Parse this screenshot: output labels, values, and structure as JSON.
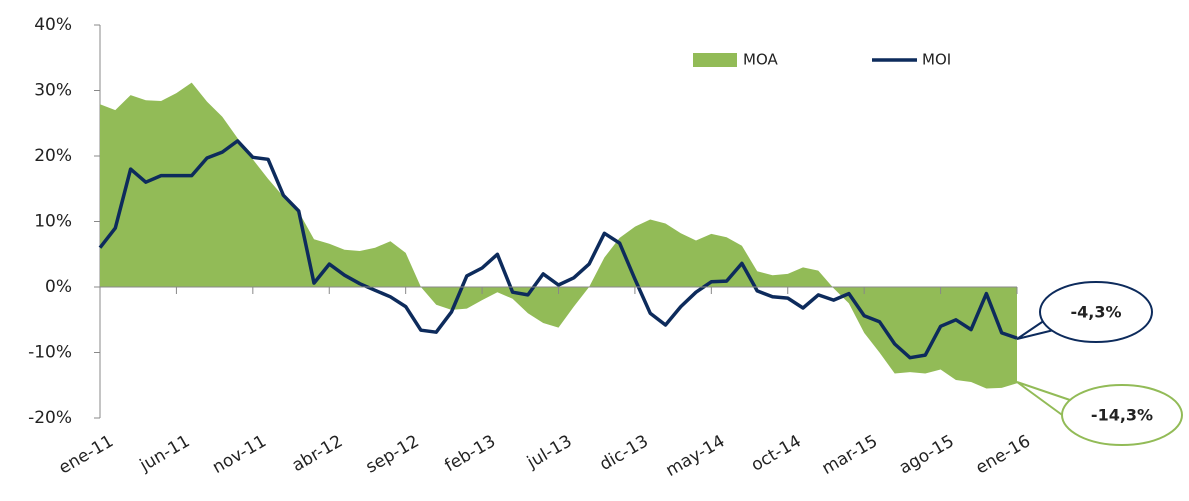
{
  "chart_data": {
    "type": "area-line",
    "categories": [
      "ene-11",
      null,
      null,
      null,
      null,
      "jun-11",
      null,
      null,
      null,
      null,
      "nov-11",
      null,
      null,
      null,
      null,
      "abr-12",
      null,
      null,
      null,
      null,
      "sep-12",
      null,
      null,
      null,
      null,
      "feb-13",
      null,
      null,
      null,
      null,
      "jul-13",
      null,
      null,
      null,
      null,
      "dic-13",
      null,
      null,
      null,
      null,
      "may-14",
      null,
      null,
      null,
      null,
      "oct-14",
      null,
      null,
      null,
      null,
      "mar-15",
      null,
      null,
      null,
      null,
      "ago-15",
      null,
      null,
      null,
      null,
      "ene-16"
    ],
    "series": [
      {
        "name": "MOA",
        "color": "#92bb57",
        "values": [
          27.9,
          27,
          29.3,
          28.5,
          28.4,
          29.6,
          31.2,
          28.3,
          26,
          22.7,
          19.5,
          16.5,
          13.8,
          11.5,
          7.3,
          6.6,
          5.7,
          5.5,
          6,
          7,
          5.2,
          0,
          -2.7,
          -3.5,
          -3.3,
          -2,
          -0.8,
          -1.8,
          -4,
          -5.5,
          -6.2,
          -3,
          0,
          4.5,
          7.5,
          9.2,
          10.3,
          9.7,
          8.2,
          7.1,
          8.1,
          7.6,
          6.3,
          2.4,
          1.8,
          2,
          3,
          2.5,
          -0.2,
          -2.5,
          -7,
          -10,
          -13.2,
          -13,
          -13.2,
          -12.6,
          -14.2,
          -14.5,
          -15.5,
          -15.4,
          -14.7
        ]
      },
      {
        "name": "MOI",
        "color": "#0d2b5c",
        "values": [
          6,
          9,
          18,
          16,
          17,
          17,
          17,
          19.7,
          20.6,
          22.3,
          19.8,
          19.5,
          14,
          11.6,
          0.6,
          3.5,
          1.8,
          0.5,
          -0.5,
          -1.5,
          -3,
          -6.6,
          -6.9,
          -3.8,
          1.7,
          2.9,
          5,
          -0.8,
          -1.2,
          2,
          0.3,
          1.4,
          3.5,
          8.2,
          6.7,
          1.2,
          -4,
          -5.8,
          -3,
          -0.8,
          0.8,
          0.9,
          3.6,
          -0.6,
          -1.5,
          -1.7,
          -3.2,
          -1.2,
          -2,
          -1,
          -4.4,
          -5.3,
          -8.7,
          -10.8,
          -10.4,
          -6,
          -5,
          -6.5,
          -1,
          -7,
          -7.8
        ]
      }
    ],
    "ylim": [
      -20,
      40
    ],
    "yticks": [
      {
        "value": -20,
        "label": "-20%"
      },
      {
        "value": -10,
        "label": "-10%"
      },
      {
        "value": 0,
        "label": "0%"
      },
      {
        "value": 10,
        "label": "10%"
      },
      {
        "value": 20,
        "label": "20%"
      },
      {
        "value": 30,
        "label": "30%"
      },
      {
        "value": 40,
        "label": "40%"
      }
    ],
    "annotations": [
      "-4,3%",
      "-14,3%"
    ]
  }
}
